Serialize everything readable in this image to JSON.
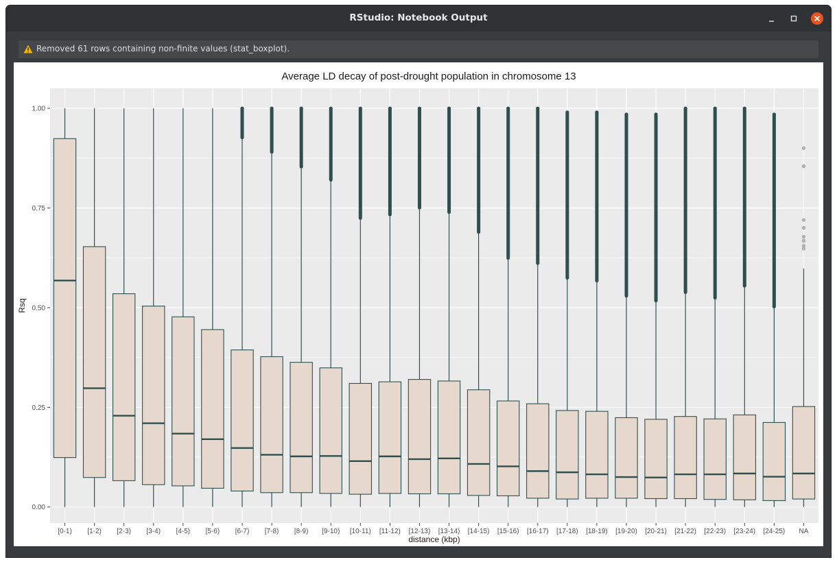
{
  "window": {
    "title": "RStudio: Notebook Output",
    "buttons": {
      "minimize": "–",
      "maximize": "□",
      "close": "×"
    },
    "close_color": "#e95420"
  },
  "warning": {
    "icon": "warning-icon",
    "icon_color": "#f4b400",
    "text": "Removed 61 rows containing non-finite values (stat_boxplot)."
  },
  "chart_data": {
    "type": "box",
    "title": "Average LD decay of post-drought population in chromosome 13",
    "xlabel": "distance (kbp)",
    "ylabel": "Rsq",
    "ylim": [
      -0.04,
      1.05
    ],
    "yticks": [
      0.0,
      0.25,
      0.5,
      0.75,
      1.0
    ],
    "ytick_labels": [
      "0.00",
      "0.25",
      "0.50",
      "0.75",
      "1.00"
    ],
    "grid": true,
    "legend": "none",
    "colors": {
      "panel": "#ebebeb",
      "grid": "#ffffff",
      "box_fill": "#e6d8cc",
      "outline": "#2f4f4f"
    },
    "categories": [
      "[0-1)",
      "[1-2)",
      "[2-3)",
      "[3-4)",
      "[4-5)",
      "[5-6)",
      "[6-7)",
      "[7-8)",
      "[8-9)",
      "[9-10)",
      "[10-11)",
      "[11-12)",
      "[12-13)",
      "[13-14)",
      "[14-15)",
      "[15-16)",
      "[16-17)",
      "[17-18)",
      "[18-19)",
      "[19-20)",
      "[20-21)",
      "[21-22)",
      "[22-23)",
      "[23-24)",
      "[24-25)",
      "NA"
    ],
    "boxes": [
      {
        "min": 0.0,
        "q1": 0.124,
        "median": 0.568,
        "q3": 0.924,
        "max": 1.0,
        "outliers_from": null,
        "outliers_to": null
      },
      {
        "min": 0.0,
        "q1": 0.074,
        "median": 0.298,
        "q3": 0.653,
        "max": 1.0,
        "outliers_from": null,
        "outliers_to": null
      },
      {
        "min": 0.0,
        "q1": 0.066,
        "median": 0.229,
        "q3": 0.535,
        "max": 1.0,
        "outliers_from": null,
        "outliers_to": null
      },
      {
        "min": 0.0,
        "q1": 0.056,
        "median": 0.21,
        "q3": 0.504,
        "max": 1.0,
        "outliers_from": null,
        "outliers_to": null
      },
      {
        "min": 0.0,
        "q1": 0.053,
        "median": 0.184,
        "q3": 0.477,
        "max": 1.0,
        "outliers_from": null,
        "outliers_to": null
      },
      {
        "min": 0.0,
        "q1": 0.047,
        "median": 0.17,
        "q3": 0.445,
        "max": 1.0,
        "outliers_from": null,
        "outliers_to": null
      },
      {
        "min": 0.0,
        "q1": 0.04,
        "median": 0.148,
        "q3": 0.394,
        "max": 0.924,
        "outliers_from": 0.924,
        "outliers_to": 1.0
      },
      {
        "min": 0.0,
        "q1": 0.036,
        "median": 0.131,
        "q3": 0.377,
        "max": 0.888,
        "outliers_from": 0.888,
        "outliers_to": 1.0
      },
      {
        "min": 0.0,
        "q1": 0.036,
        "median": 0.127,
        "q3": 0.363,
        "max": 0.851,
        "outliers_from": 0.851,
        "outliers_to": 1.0
      },
      {
        "min": 0.0,
        "q1": 0.034,
        "median": 0.128,
        "q3": 0.349,
        "max": 0.818,
        "outliers_from": 0.818,
        "outliers_to": 1.0
      },
      {
        "min": 0.0,
        "q1": 0.032,
        "median": 0.115,
        "q3": 0.31,
        "max": 0.722,
        "outliers_from": 0.722,
        "outliers_to": 1.0
      },
      {
        "min": 0.0,
        "q1": 0.034,
        "median": 0.127,
        "q3": 0.314,
        "max": 0.731,
        "outliers_from": 0.731,
        "outliers_to": 1.0
      },
      {
        "min": 0.0,
        "q1": 0.033,
        "median": 0.12,
        "q3": 0.32,
        "max": 0.748,
        "outliers_from": 0.748,
        "outliers_to": 1.0
      },
      {
        "min": 0.0,
        "q1": 0.033,
        "median": 0.122,
        "q3": 0.316,
        "max": 0.737,
        "outliers_from": 0.737,
        "outliers_to": 1.0
      },
      {
        "min": 0.0,
        "q1": 0.029,
        "median": 0.108,
        "q3": 0.294,
        "max": 0.687,
        "outliers_from": 0.687,
        "outliers_to": 1.0
      },
      {
        "min": 0.0,
        "q1": 0.028,
        "median": 0.102,
        "q3": 0.266,
        "max": 0.622,
        "outliers_from": 0.622,
        "outliers_to": 1.0
      },
      {
        "min": 0.0,
        "q1": 0.022,
        "median": 0.09,
        "q3": 0.259,
        "max": 0.609,
        "outliers_from": 0.609,
        "outliers_to": 1.0
      },
      {
        "min": 0.0,
        "q1": 0.02,
        "median": 0.087,
        "q3": 0.242,
        "max": 0.572,
        "outliers_from": 0.572,
        "outliers_to": 0.99
      },
      {
        "min": 0.0,
        "q1": 0.022,
        "median": 0.082,
        "q3": 0.24,
        "max": 0.565,
        "outliers_from": 0.565,
        "outliers_to": 0.99
      },
      {
        "min": 0.0,
        "q1": 0.022,
        "median": 0.075,
        "q3": 0.224,
        "max": 0.527,
        "outliers_from": 0.527,
        "outliers_to": 0.985
      },
      {
        "min": 0.0,
        "q1": 0.021,
        "median": 0.074,
        "q3": 0.22,
        "max": 0.515,
        "outliers_from": 0.515,
        "outliers_to": 0.985
      },
      {
        "min": 0.0,
        "q1": 0.021,
        "median": 0.082,
        "q3": 0.227,
        "max": 0.536,
        "outliers_from": 0.536,
        "outliers_to": 1.0
      },
      {
        "min": 0.0,
        "q1": 0.019,
        "median": 0.082,
        "q3": 0.221,
        "max": 0.522,
        "outliers_from": 0.522,
        "outliers_to": 1.0
      },
      {
        "min": 0.0,
        "q1": 0.018,
        "median": 0.084,
        "q3": 0.231,
        "max": 0.552,
        "outliers_from": 0.552,
        "outliers_to": 1.0
      },
      {
        "min": 0.0,
        "q1": 0.016,
        "median": 0.076,
        "q3": 0.212,
        "max": 0.5,
        "outliers_from": 0.5,
        "outliers_to": 0.985
      },
      {
        "min": 0.0,
        "q1": 0.02,
        "median": 0.084,
        "q3": 0.252,
        "max": 0.598,
        "outliers_from": null,
        "outliers_to": null
      }
    ],
    "na_outliers": [
      0.9,
      0.855,
      0.72,
      0.7,
      0.678,
      0.668,
      0.655,
      0.648
    ]
  }
}
